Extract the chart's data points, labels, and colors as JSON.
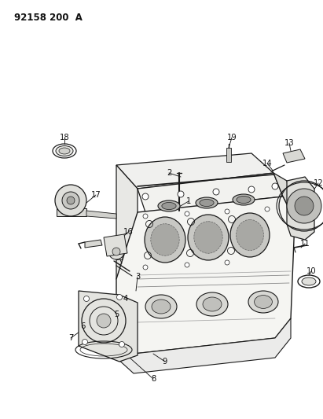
{
  "title": "92158 200  A",
  "bg_color": "#ffffff",
  "line_color": "#1a1a1a",
  "label_color": "#111111",
  "figsize": [
    4.11,
    5.33
  ],
  "dpi": 100
}
